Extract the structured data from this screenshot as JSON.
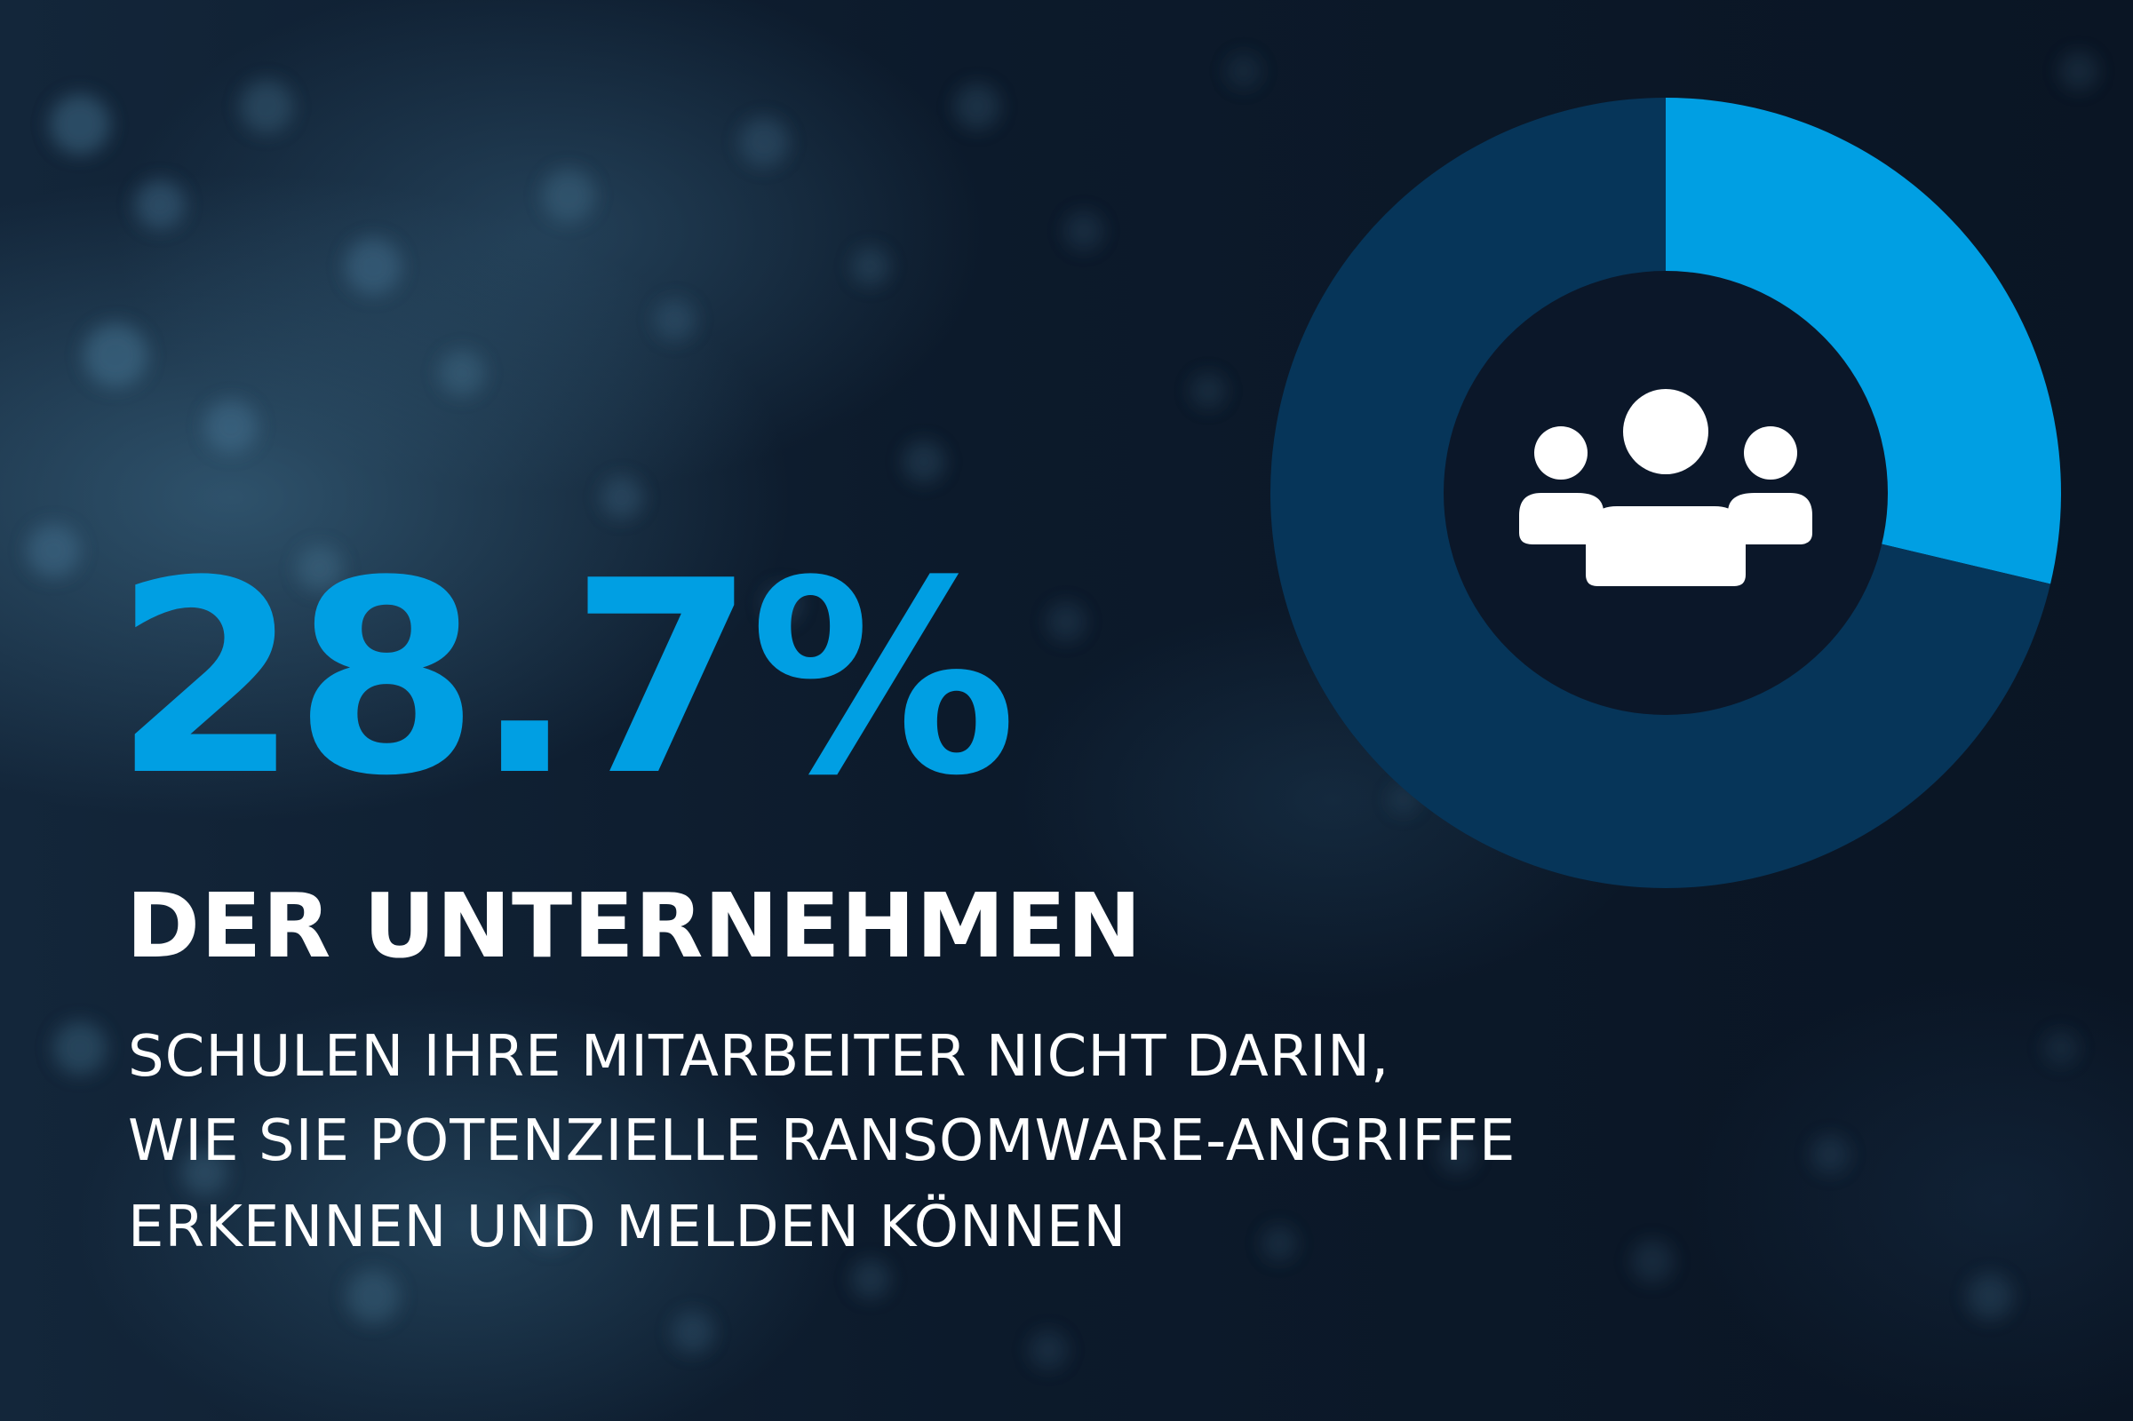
{
  "stat": {
    "value_label": "28.7%",
    "headline": "DER UNTERNEHMEN",
    "lines": [
      "SCHULEN IHRE MITARBEITER NICHT DARIN,",
      "WIE SIE POTENZIELLE RANSOMWARE-ANGRIFFE",
      "ERKENNEN UND MELDEN KÖNNEN"
    ]
  },
  "chart_data": {
    "type": "pie",
    "donut": true,
    "values": [
      28.7,
      71.3
    ],
    "colors": [
      "#009fe3",
      "#063559"
    ],
    "center_color": "#0b1729",
    "center_icon": "group-users-icon",
    "icon_color": "#ffffff"
  }
}
